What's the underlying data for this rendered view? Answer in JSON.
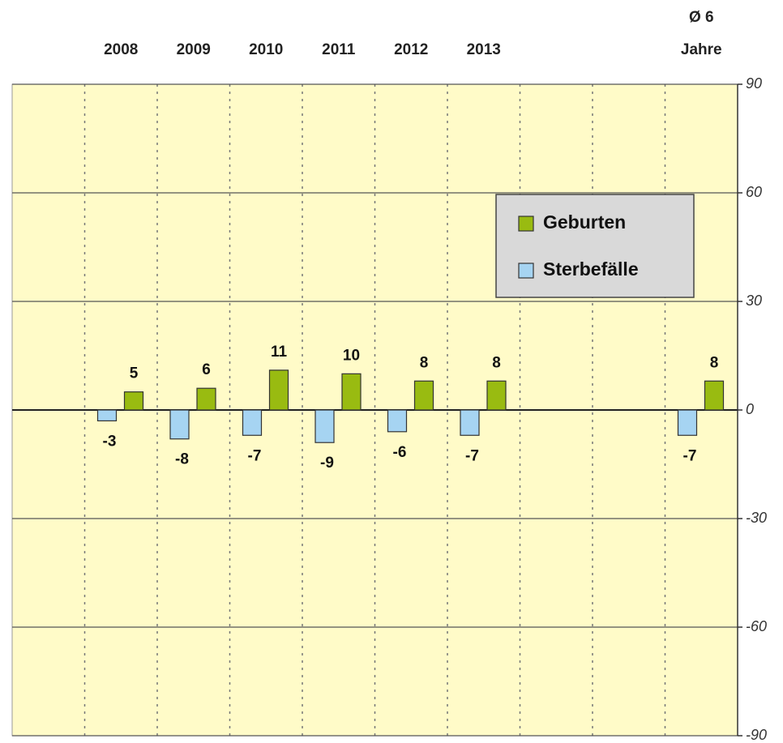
{
  "chart_data": {
    "type": "bar",
    "categories": [
      null,
      "2008",
      "2009",
      "2010",
      "2011",
      "2012",
      "2013",
      null,
      null,
      "Ø 6\nJahre"
    ],
    "series": [
      {
        "name": "Sterbefälle",
        "color": "#a6d4f2",
        "values": [
          null,
          -3,
          -8,
          -7,
          -9,
          -6,
          -7,
          null,
          null,
          -7
        ]
      },
      {
        "name": "Geburten",
        "color": "#99bb11",
        "values": [
          null,
          5,
          6,
          11,
          10,
          8,
          8,
          null,
          null,
          8
        ]
      }
    ],
    "legend_order": [
      1,
      0
    ],
    "ylim": [
      -90,
      90
    ],
    "yticks": [
      -90,
      -60,
      -30,
      0,
      30,
      60,
      90
    ],
    "y_axis_side": "right",
    "grid": true
  }
}
